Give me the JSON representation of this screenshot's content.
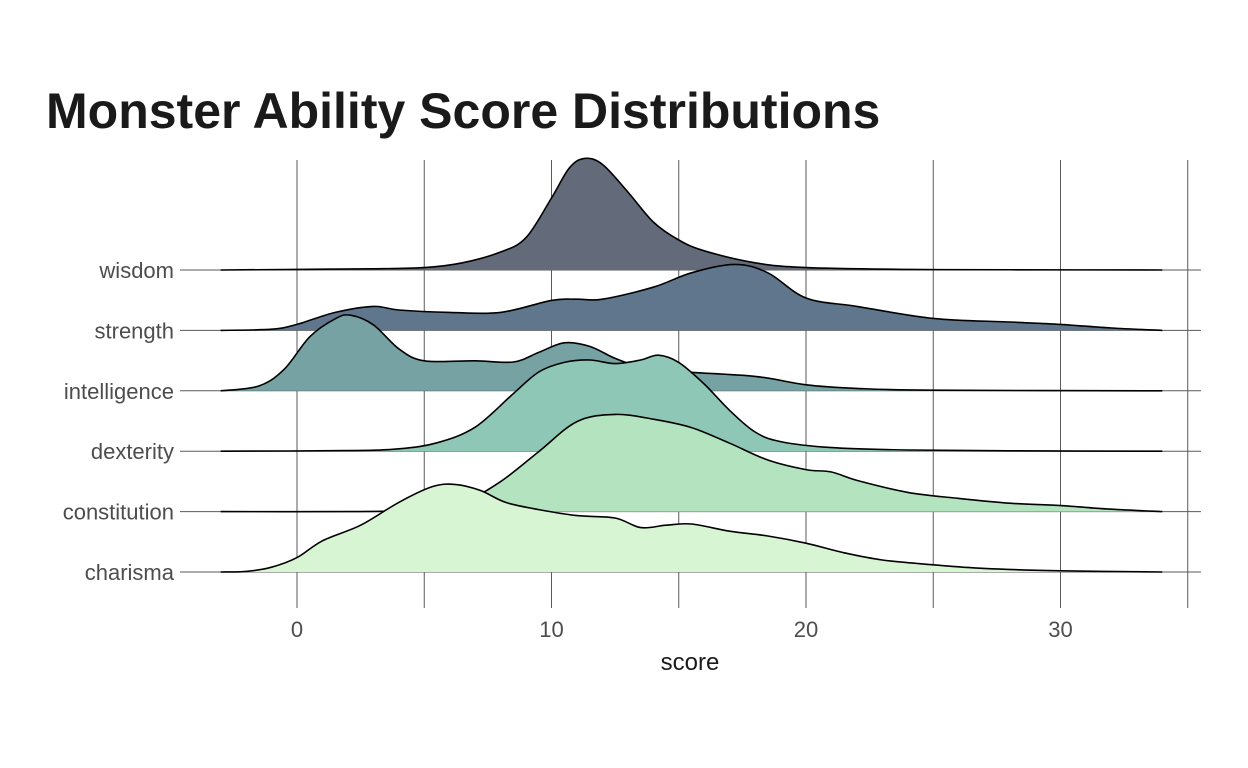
{
  "chart_data": {
    "type": "ridgeline",
    "title": "Monster Ability Score Distributions",
    "xlabel": "score",
    "ylabel": "",
    "xlim": [
      -3,
      34
    ],
    "x_ticks": [
      0,
      10,
      20,
      30
    ],
    "grid": true,
    "categories": [
      "wisdom",
      "strength",
      "intelligence",
      "dexterity",
      "constitution",
      "charisma"
    ],
    "series": [
      {
        "name": "wisdom",
        "color": "#636b7a",
        "density": [
          [
            -3,
            0
          ],
          [
            0,
            0.005
          ],
          [
            3,
            0.01
          ],
          [
            5,
            0.02
          ],
          [
            6.5,
            0.06
          ],
          [
            8,
            0.15
          ],
          [
            9,
            0.27
          ],
          [
            10,
            0.6
          ],
          [
            10.7,
            0.85
          ],
          [
            11.3,
            0.93
          ],
          [
            12,
            0.88
          ],
          [
            13,
            0.65
          ],
          [
            14,
            0.4
          ],
          [
            15,
            0.25
          ],
          [
            16,
            0.16
          ],
          [
            18,
            0.06
          ],
          [
            20,
            0.02
          ],
          [
            24,
            0.005
          ],
          [
            28,
            0.002
          ],
          [
            34,
            0
          ]
        ]
      },
      {
        "name": "strength",
        "color": "#5f768c",
        "density": [
          [
            -3,
            0
          ],
          [
            -1,
            0.01
          ],
          [
            0,
            0.05
          ],
          [
            1.5,
            0.15
          ],
          [
            3,
            0.2
          ],
          [
            4,
            0.17
          ],
          [
            6,
            0.15
          ],
          [
            8,
            0.15
          ],
          [
            10,
            0.25
          ],
          [
            11,
            0.26
          ],
          [
            12,
            0.26
          ],
          [
            14,
            0.36
          ],
          [
            15.5,
            0.48
          ],
          [
            17.2,
            0.55
          ],
          [
            18.5,
            0.48
          ],
          [
            20,
            0.27
          ],
          [
            22,
            0.2
          ],
          [
            25,
            0.1
          ],
          [
            28,
            0.07
          ],
          [
            30,
            0.05
          ],
          [
            32,
            0.02
          ],
          [
            34,
            0
          ]
        ]
      },
      {
        "name": "intelligence",
        "color": "#76a2a3",
        "density": [
          [
            -3,
            0
          ],
          [
            -1.5,
            0.04
          ],
          [
            -0.5,
            0.18
          ],
          [
            0.5,
            0.45
          ],
          [
            1.5,
            0.6
          ],
          [
            2.1,
            0.63
          ],
          [
            3,
            0.55
          ],
          [
            4,
            0.35
          ],
          [
            5,
            0.25
          ],
          [
            7,
            0.25
          ],
          [
            8.5,
            0.24
          ],
          [
            9.5,
            0.32
          ],
          [
            10.5,
            0.4
          ],
          [
            11.5,
            0.37
          ],
          [
            12.5,
            0.27
          ],
          [
            13.5,
            0.2
          ],
          [
            15,
            0.16
          ],
          [
            18,
            0.12
          ],
          [
            20,
            0.05
          ],
          [
            22,
            0.02
          ],
          [
            25,
            0.005
          ],
          [
            34,
            0
          ]
        ]
      },
      {
        "name": "dexterity",
        "color": "#8fc7b6",
        "density": [
          [
            -3,
            0
          ],
          [
            2,
            0.005
          ],
          [
            4,
            0.02
          ],
          [
            5.5,
            0.07
          ],
          [
            7,
            0.2
          ],
          [
            8.5,
            0.48
          ],
          [
            9.5,
            0.66
          ],
          [
            10.5,
            0.74
          ],
          [
            11.5,
            0.76
          ],
          [
            12.5,
            0.73
          ],
          [
            13.5,
            0.76
          ],
          [
            14.2,
            0.8
          ],
          [
            15,
            0.74
          ],
          [
            16,
            0.56
          ],
          [
            17,
            0.34
          ],
          [
            18,
            0.16
          ],
          [
            19,
            0.08
          ],
          [
            21,
            0.03
          ],
          [
            24,
            0.01
          ],
          [
            28,
            0.003
          ],
          [
            34,
            0
          ]
        ]
      },
      {
        "name": "constitution",
        "color": "#b4e3c0",
        "density": [
          [
            -3,
            0
          ],
          [
            2,
            0
          ],
          [
            4,
            0.005
          ],
          [
            5.5,
            0.02
          ],
          [
            6.5,
            0.07
          ],
          [
            8,
            0.25
          ],
          [
            9.5,
            0.5
          ],
          [
            11,
            0.75
          ],
          [
            12.5,
            0.81
          ],
          [
            14,
            0.77
          ],
          [
            15.5,
            0.7
          ],
          [
            17,
            0.57
          ],
          [
            18.5,
            0.43
          ],
          [
            20,
            0.35
          ],
          [
            21,
            0.33
          ],
          [
            22,
            0.26
          ],
          [
            24,
            0.16
          ],
          [
            26,
            0.11
          ],
          [
            28,
            0.07
          ],
          [
            30,
            0.05
          ],
          [
            32,
            0.02
          ],
          [
            34,
            0
          ]
        ]
      },
      {
        "name": "charisma",
        "color": "#d8f5d3",
        "density": [
          [
            -3,
            0
          ],
          [
            -2,
            0.005
          ],
          [
            -1,
            0.04
          ],
          [
            0,
            0.12
          ],
          [
            1,
            0.26
          ],
          [
            2.5,
            0.39
          ],
          [
            4,
            0.58
          ],
          [
            5.3,
            0.71
          ],
          [
            6.2,
            0.73
          ],
          [
            7.2,
            0.68
          ],
          [
            8.2,
            0.58
          ],
          [
            9.5,
            0.52
          ],
          [
            11,
            0.47
          ],
          [
            12.5,
            0.45
          ],
          [
            13.5,
            0.37
          ],
          [
            14.5,
            0.39
          ],
          [
            15.5,
            0.4
          ],
          [
            17,
            0.34
          ],
          [
            18.5,
            0.3
          ],
          [
            20,
            0.24
          ],
          [
            21.5,
            0.16
          ],
          [
            23,
            0.1
          ],
          [
            25,
            0.06
          ],
          [
            27,
            0.03
          ],
          [
            30,
            0.01
          ],
          [
            34,
            0
          ]
        ]
      }
    ]
  }
}
